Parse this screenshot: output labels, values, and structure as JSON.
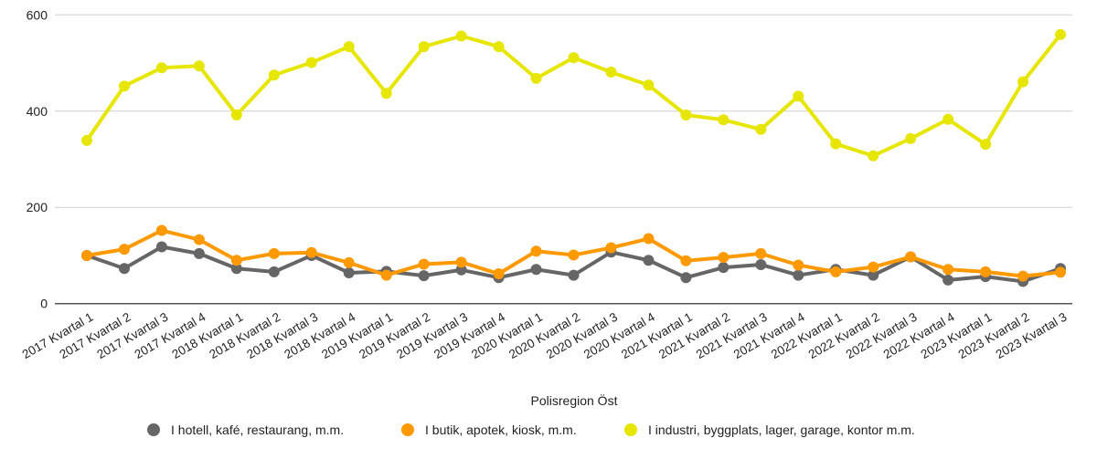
{
  "chart_data": {
    "type": "line",
    "title": "",
    "xlabel": "Polisregion Öst",
    "ylabel": "",
    "ylim": [
      0,
      600
    ],
    "yticks": [
      0,
      200,
      400,
      600
    ],
    "grid": true,
    "legend_position": "bottom",
    "categories": [
      "2017 Kvartal 1",
      "2017 Kvartal 2",
      "2017 Kvartal 3",
      "2017 Kvartal 4",
      "2018 Kvartal 1",
      "2018 Kvartal 2",
      "2018 Kvartal 3",
      "2018 Kvartal 4",
      "2019 Kvartal 1",
      "2019 Kvartal 2",
      "2019 Kvartal 3",
      "2019 Kvartal 4",
      "2020 Kvartal 1",
      "2020 Kvartal 2",
      "2020 Kvartal 3",
      "2020 Kvartal 4",
      "2021 Kvartal 1",
      "2021 Kvartal 2",
      "2021 Kvartal 3",
      "2021 Kvartal 4",
      "2022 Kvartal 1",
      "2022 Kvartal 2",
      "2022 Kvartal 3",
      "2022 Kvartal 4",
      "2023 Kvartal 1",
      "2023 Kvartal 2",
      "2023 Kvartal 3"
    ],
    "series": [
      {
        "name": "I hotell, kafé, restaurang, m.m.",
        "color": "#666666",
        "values": [
          100,
          73,
          118,
          104,
          73,
          66,
          100,
          64,
          67,
          58,
          70,
          54,
          71,
          59,
          107,
          90,
          54,
          75,
          81,
          59,
          71,
          59,
          97,
          49,
          56,
          46,
          73
        ]
      },
      {
        "name": "I butik, apotek, kiosk, m.m.",
        "color": "#ff9900",
        "values": [
          100,
          113,
          152,
          133,
          90,
          104,
          106,
          85,
          59,
          82,
          86,
          62,
          109,
          101,
          116,
          135,
          89,
          96,
          104,
          80,
          66,
          76,
          97,
          71,
          66,
          57,
          65
        ]
      },
      {
        "name": "I industri, byggplats, lager, garage, kontor m.m.",
        "color": "#e6e600",
        "values": [
          339,
          452,
          490,
          494,
          392,
          475,
          501,
          534,
          437,
          534,
          556,
          534,
          468,
          511,
          481,
          454,
          392,
          382,
          362,
          431,
          332,
          307,
          343,
          383,
          331,
          461,
          559
        ]
      }
    ]
  }
}
